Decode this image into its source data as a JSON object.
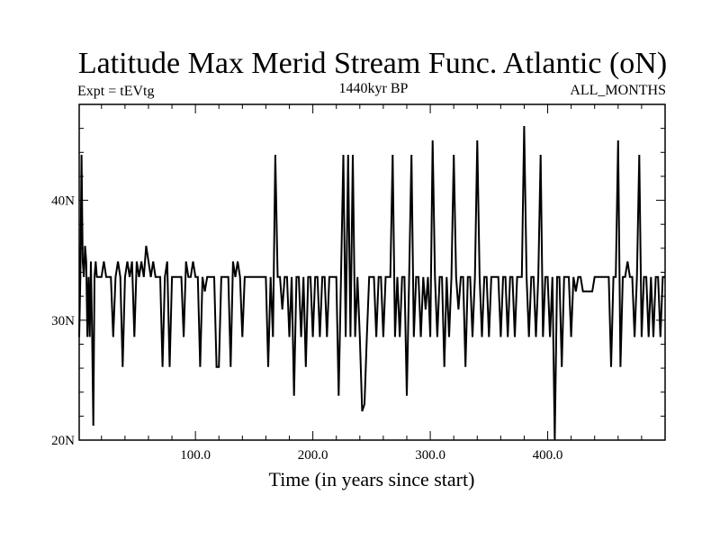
{
  "chart_data": {
    "type": "line",
    "title": "Latitude Max Merid Stream Func. Atlantic (oN)",
    "subtitle_left": "Expt = tEVtg",
    "subtitle_center": "1440kyr BP",
    "subtitle_right": "ALL_MONTHS",
    "xlabel": "Time (in years since start)",
    "ylabel": "",
    "xlim": [
      1,
      500
    ],
    "ylim": [
      20,
      48
    ],
    "xticks": [
      {
        "value": 100,
        "label": "100.0"
      },
      {
        "value": 200,
        "label": "200.0"
      },
      {
        "value": 300,
        "label": "300.0"
      },
      {
        "value": 400,
        "label": "400.0"
      }
    ],
    "yticks": [
      {
        "value": 20,
        "label": "20N"
      },
      {
        "value": 30,
        "label": "30N"
      },
      {
        "value": 40,
        "label": "40N"
      }
    ],
    "grid": false,
    "series": [
      {
        "points": [
          [
            1,
            28.6
          ],
          [
            2,
            33.6
          ],
          [
            3,
            43.8
          ],
          [
            4,
            34.9
          ],
          [
            5,
            33.6
          ],
          [
            6,
            36.2
          ],
          [
            7,
            34.9
          ],
          [
            8,
            28.6
          ],
          [
            9,
            33.6
          ],
          [
            10,
            28.6
          ],
          [
            11,
            34.9
          ],
          [
            12,
            28.6
          ],
          [
            13,
            21.2
          ],
          [
            14,
            33.6
          ],
          [
            15,
            34.9
          ],
          [
            16,
            33.6
          ],
          [
            18,
            33.6
          ],
          [
            20,
            33.6
          ],
          [
            22,
            34.9
          ],
          [
            24,
            33.6
          ],
          [
            26,
            33.6
          ],
          [
            28,
            33.6
          ],
          [
            30,
            28.6
          ],
          [
            32,
            33.6
          ],
          [
            34,
            34.9
          ],
          [
            36,
            33.6
          ],
          [
            38,
            26.1
          ],
          [
            40,
            33.6
          ],
          [
            42,
            34.9
          ],
          [
            44,
            33.6
          ],
          [
            46,
            34.9
          ],
          [
            48,
            28.6
          ],
          [
            50,
            34.9
          ],
          [
            52,
            33.6
          ],
          [
            54,
            34.9
          ],
          [
            56,
            33.6
          ],
          [
            58,
            36.2
          ],
          [
            60,
            34.9
          ],
          [
            62,
            33.6
          ],
          [
            64,
            34.9
          ],
          [
            66,
            33.6
          ],
          [
            68,
            33.6
          ],
          [
            70,
            33.6
          ],
          [
            72,
            26.1
          ],
          [
            74,
            33.6
          ],
          [
            76,
            34.9
          ],
          [
            78,
            26.1
          ],
          [
            80,
            33.6
          ],
          [
            82,
            33.6
          ],
          [
            84,
            33.6
          ],
          [
            86,
            33.6
          ],
          [
            88,
            33.6
          ],
          [
            90,
            28.6
          ],
          [
            92,
            34.9
          ],
          [
            94,
            33.6
          ],
          [
            96,
            33.6
          ],
          [
            98,
            34.9
          ],
          [
            100,
            33.6
          ],
          [
            102,
            33.6
          ],
          [
            104,
            26.1
          ],
          [
            106,
            33.6
          ],
          [
            108,
            32.4
          ],
          [
            110,
            33.6
          ],
          [
            112,
            33.6
          ],
          [
            114,
            33.6
          ],
          [
            116,
            33.6
          ],
          [
            118,
            26.1
          ],
          [
            120,
            26.1
          ],
          [
            122,
            33.6
          ],
          [
            124,
            33.6
          ],
          [
            126,
            33.6
          ],
          [
            128,
            33.6
          ],
          [
            130,
            26.1
          ],
          [
            132,
            34.9
          ],
          [
            134,
            33.6
          ],
          [
            136,
            34.9
          ],
          [
            138,
            33.6
          ],
          [
            140,
            28.6
          ],
          [
            142,
            33.6
          ],
          [
            144,
            33.6
          ],
          [
            146,
            33.6
          ],
          [
            148,
            33.6
          ],
          [
            150,
            33.6
          ],
          [
            152,
            33.6
          ],
          [
            154,
            33.6
          ],
          [
            156,
            33.6
          ],
          [
            158,
            33.6
          ],
          [
            160,
            33.6
          ],
          [
            162,
            26.1
          ],
          [
            164,
            33.6
          ],
          [
            166,
            28.6
          ],
          [
            168,
            43.8
          ],
          [
            170,
            33.6
          ],
          [
            172,
            33.6
          ],
          [
            174,
            30.9
          ],
          [
            176,
            33.6
          ],
          [
            178,
            33.6
          ],
          [
            180,
            28.6
          ],
          [
            182,
            33.6
          ],
          [
            184,
            23.7
          ],
          [
            186,
            33.6
          ],
          [
            188,
            33.6
          ],
          [
            190,
            28.6
          ],
          [
            192,
            33.6
          ],
          [
            194,
            26.1
          ],
          [
            196,
            33.6
          ],
          [
            198,
            33.6
          ],
          [
            200,
            28.6
          ],
          [
            202,
            33.6
          ],
          [
            204,
            33.6
          ],
          [
            206,
            28.6
          ],
          [
            208,
            33.6
          ],
          [
            210,
            33.6
          ],
          [
            212,
            28.6
          ],
          [
            214,
            33.6
          ],
          [
            216,
            33.6
          ],
          [
            218,
            33.6
          ],
          [
            220,
            33.6
          ],
          [
            222,
            23.7
          ],
          [
            224,
            33.6
          ],
          [
            226,
            43.8
          ],
          [
            228,
            28.6
          ],
          [
            230,
            43.8
          ],
          [
            232,
            28.6
          ],
          [
            234,
            43.8
          ],
          [
            236,
            28.6
          ],
          [
            238,
            33.6
          ],
          [
            240,
            28.6
          ],
          [
            242,
            22.4
          ],
          [
            244,
            23.0
          ],
          [
            246,
            28.6
          ],
          [
            248,
            33.6
          ],
          [
            250,
            33.6
          ],
          [
            252,
            33.6
          ],
          [
            254,
            28.6
          ],
          [
            256,
            33.6
          ],
          [
            258,
            33.6
          ],
          [
            260,
            28.6
          ],
          [
            262,
            33.6
          ],
          [
            264,
            33.6
          ],
          [
            266,
            33.6
          ],
          [
            268,
            43.8
          ],
          [
            270,
            28.6
          ],
          [
            272,
            33.6
          ],
          [
            274,
            28.6
          ],
          [
            276,
            33.6
          ],
          [
            278,
            33.6
          ],
          [
            280,
            23.7
          ],
          [
            282,
            33.6
          ],
          [
            284,
            43.8
          ],
          [
            286,
            28.6
          ],
          [
            288,
            33.6
          ],
          [
            290,
            33.6
          ],
          [
            292,
            28.6
          ],
          [
            294,
            33.6
          ],
          [
            296,
            30.9
          ],
          [
            298,
            33.6
          ],
          [
            300,
            28.6
          ],
          [
            302,
            45.0
          ],
          [
            304,
            33.6
          ],
          [
            306,
            28.6
          ],
          [
            308,
            33.6
          ],
          [
            310,
            33.6
          ],
          [
            312,
            26.1
          ],
          [
            314,
            33.6
          ],
          [
            316,
            28.6
          ],
          [
            318,
            33.6
          ],
          [
            320,
            43.8
          ],
          [
            322,
            33.6
          ],
          [
            324,
            30.9
          ],
          [
            326,
            33.6
          ],
          [
            328,
            33.6
          ],
          [
            330,
            26.1
          ],
          [
            332,
            33.6
          ],
          [
            334,
            33.6
          ],
          [
            336,
            28.6
          ],
          [
            338,
            33.6
          ],
          [
            340,
            45.0
          ],
          [
            342,
            33.6
          ],
          [
            344,
            28.6
          ],
          [
            346,
            33.6
          ],
          [
            348,
            33.6
          ],
          [
            350,
            28.6
          ],
          [
            352,
            33.6
          ],
          [
            354,
            33.6
          ],
          [
            356,
            33.6
          ],
          [
            358,
            33.6
          ],
          [
            360,
            28.6
          ],
          [
            362,
            33.6
          ],
          [
            364,
            33.6
          ],
          [
            366,
            28.6
          ],
          [
            368,
            33.6
          ],
          [
            370,
            33.6
          ],
          [
            372,
            28.6
          ],
          [
            374,
            33.6
          ],
          [
            376,
            33.6
          ],
          [
            378,
            33.6
          ],
          [
            380,
            46.2
          ],
          [
            382,
            33.6
          ],
          [
            384,
            28.6
          ],
          [
            386,
            33.6
          ],
          [
            388,
            33.6
          ],
          [
            390,
            28.6
          ],
          [
            392,
            33.6
          ],
          [
            394,
            43.8
          ],
          [
            396,
            28.6
          ],
          [
            398,
            33.6
          ],
          [
            400,
            33.6
          ],
          [
            402,
            28.6
          ],
          [
            404,
            33.6
          ],
          [
            406,
            20.0
          ],
          [
            408,
            33.6
          ],
          [
            410,
            33.6
          ],
          [
            412,
            26.1
          ],
          [
            414,
            33.6
          ],
          [
            416,
            33.6
          ],
          [
            418,
            33.6
          ],
          [
            420,
            28.6
          ],
          [
            422,
            33.6
          ],
          [
            424,
            32.4
          ],
          [
            426,
            33.6
          ],
          [
            428,
            33.6
          ],
          [
            430,
            32.4
          ],
          [
            432,
            32.4
          ],
          [
            434,
            32.4
          ],
          [
            436,
            32.4
          ],
          [
            438,
            32.4
          ],
          [
            440,
            33.6
          ],
          [
            442,
            33.6
          ],
          [
            444,
            33.6
          ],
          [
            446,
            33.6
          ],
          [
            448,
            33.6
          ],
          [
            450,
            33.6
          ],
          [
            452,
            33.6
          ],
          [
            454,
            26.1
          ],
          [
            456,
            33.6
          ],
          [
            458,
            33.6
          ],
          [
            460,
            45.0
          ],
          [
            462,
            26.1
          ],
          [
            464,
            33.6
          ],
          [
            466,
            33.6
          ],
          [
            468,
            34.9
          ],
          [
            470,
            33.6
          ],
          [
            472,
            33.6
          ],
          [
            474,
            28.6
          ],
          [
            476,
            33.6
          ],
          [
            478,
            43.8
          ],
          [
            480,
            28.6
          ],
          [
            482,
            33.6
          ],
          [
            484,
            33.6
          ],
          [
            486,
            28.6
          ],
          [
            488,
            33.6
          ],
          [
            490,
            28.6
          ],
          [
            492,
            33.6
          ],
          [
            494,
            33.6
          ],
          [
            496,
            28.6
          ],
          [
            498,
            33.6
          ],
          [
            500,
            33.6
          ]
        ]
      }
    ]
  }
}
